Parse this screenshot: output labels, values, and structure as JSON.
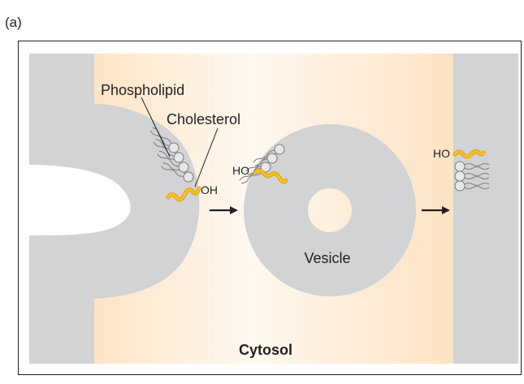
{
  "panel_label": "(a)",
  "labels": {
    "phospholipid": "Phospholipid",
    "cholesterol": "Cholesterol",
    "oh_right": "OH",
    "ho_vesicle": "HO",
    "ho_membrane": "HO",
    "vesicle": "Vesicle",
    "cytosol": "Cytosol"
  },
  "colors": {
    "membrane_gray": "#d1d3d4",
    "cytosol_peach": "#fde6c8",
    "cholesterol_yellow": "#f4c518",
    "cholesterol_orange": "#e89a1a",
    "lipid_head": "#e6e7e8",
    "lipid_tail": "#808285",
    "arrow": "#231f20"
  }
}
